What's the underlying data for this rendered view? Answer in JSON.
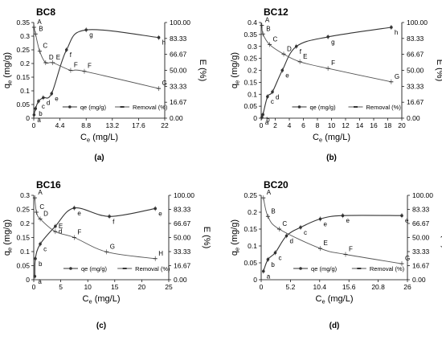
{
  "panels": [
    {
      "tag": "(a)",
      "chart_data": {
        "type": "line",
        "title": "BC8",
        "xlabel": "Ce (mg/L)",
        "ylabel": "qe (mg/g)",
        "y2label": "E (%)",
        "xlim": [
          0,
          22
        ],
        "ylim": [
          0,
          0.35
        ],
        "y2lim": [
          0,
          100
        ],
        "xticks": [
          0,
          4.4,
          8.8,
          13.2,
          17.6,
          22
        ],
        "xtick_labels": [
          "0",
          "4.4",
          "8.8",
          "13.2",
          "17.6",
          "22"
        ],
        "yticks": [
          0,
          0.05,
          0.1,
          0.15,
          0.2,
          0.25,
          0.3,
          0.35
        ],
        "ytick_labels": [
          "0",
          "0.05",
          "0.1",
          "0.15",
          "0.2",
          "0.25",
          "0.3",
          "0.35"
        ],
        "y2ticks": [
          0,
          16.67,
          33.33,
          50,
          66.67,
          83.33,
          100
        ],
        "y2tick_labels": [
          "0.00",
          "16.67",
          "33.33",
          "50.00",
          "66.67",
          "83.33",
          "100.00"
        ],
        "grid": false,
        "legend_position": "center",
        "series": [
          {
            "name": "qe (mg/g)",
            "axis": "left",
            "marker": "dot",
            "x": [
              0.05,
              0.3,
              0.8,
              1.6,
              3.0,
              5.5,
              8.8,
              21.0
            ],
            "y": [
              0.012,
              0.035,
              0.062,
              0.075,
              0.09,
              0.25,
              0.323,
              0.295
            ],
            "labels": [
              "a",
              "b",
              "c",
              "d",
              "e",
              "f",
              "g",
              "h"
            ]
          },
          {
            "name": "Removal (%)",
            "axis": "right",
            "marker": "dash",
            "x": [
              0.05,
              0.3,
              1.0,
              2.0,
              3.2,
              6.2,
              8.5,
              21.0
            ],
            "y": [
              95,
              88,
              70,
              58,
              58,
              50,
              49,
              31
            ],
            "labels": [
              "A",
              "B",
              "C",
              "D",
              "E",
              "F",
              "F",
              "G"
            ]
          }
        ]
      }
    },
    {
      "tag": "(b)",
      "chart_data": {
        "type": "line",
        "title": "BC12",
        "xlabel": "Ce (mg/L)",
        "ylabel": "qe (mg/g)",
        "y2label": "E (%)",
        "xlim": [
          0,
          20
        ],
        "ylim": [
          0,
          0.4
        ],
        "y2lim": [
          0,
          100
        ],
        "xticks": [
          0,
          2,
          4,
          6,
          8,
          10,
          12,
          14,
          16,
          18,
          20
        ],
        "xtick_labels": [
          "0",
          "2",
          "4",
          "6",
          "8",
          "10",
          "12",
          "14",
          "16",
          "18",
          "20"
        ],
        "yticks": [
          0,
          0.05,
          0.1,
          0.15,
          0.2,
          0.25,
          0.3,
          0.35,
          0.4
        ],
        "ytick_labels": [
          "0",
          "0.05",
          "0.1",
          "0.15",
          "0.2",
          "0.25",
          "0.3",
          "0.35",
          "0.4"
        ],
        "y2ticks": [
          0,
          16.67,
          33.33,
          50,
          66.67,
          83.33,
          100
        ],
        "y2tick_labels": [
          "0.00",
          "16.67",
          "33.33",
          "50.00",
          "66.67",
          "83.33",
          "100.00"
        ],
        "grid": false,
        "legend_position": "center",
        "series": [
          {
            "name": "qe (mg/g)",
            "axis": "left",
            "marker": "dot",
            "x": [
              0.1,
              0.25,
              0.9,
              1.6,
              3.0,
              5.0,
              9.5,
              18.5
            ],
            "y": [
              0.003,
              0.015,
              0.09,
              0.11,
              0.2,
              0.3,
              0.34,
              0.38
            ],
            "labels": [
              "a",
              "b",
              "c",
              "d",
              "e",
              "f",
              "g",
              "h"
            ]
          },
          {
            "name": "Removal (%)",
            "axis": "right",
            "marker": "dash",
            "x": [
              0.1,
              0.25,
              1.2,
              3.2,
              5.5,
              9.5,
              18.5
            ],
            "y": [
              97,
              88,
              77,
              67,
              59,
              52,
              38
            ],
            "labels": [
              "A",
              "B",
              "C",
              "D",
              "E",
              "F",
              "G"
            ]
          }
        ]
      }
    },
    {
      "tag": "(c)",
      "chart_data": {
        "type": "line",
        "title": "BC16",
        "xlabel": "Ce (mg/L)",
        "ylabel": "qe (mg/g)",
        "y2label": "E (%)",
        "xlim": [
          0,
          25
        ],
        "ylim": [
          0,
          0.3
        ],
        "y2lim": [
          0,
          100
        ],
        "xticks": [
          0,
          5,
          10,
          15,
          20,
          25
        ],
        "xtick_labels": [
          "0",
          "5",
          "10",
          "15",
          "20",
          "25"
        ],
        "yticks": [
          0,
          0.05,
          0.1,
          0.15,
          0.2,
          0.25,
          0.3
        ],
        "ytick_labels": [
          "0",
          "0.05",
          "0.1",
          "0.15",
          "0.2",
          "0.25",
          "0.3"
        ],
        "y2ticks": [
          0,
          16.67,
          33.33,
          50,
          66.67,
          83.33,
          100
        ],
        "y2tick_labels": [
          "0.00",
          "16.67",
          "33.33",
          "50.00",
          "66.67",
          "83.33",
          "100.00"
        ],
        "grid": false,
        "legend_position": "center",
        "series": [
          {
            "name": "qe (mg/g)",
            "axis": "left",
            "marker": "dot",
            "x": [
              0.2,
              0.3,
              1.2,
              4.0,
              7.5,
              14.0,
              22.5
            ],
            "y": [
              0.012,
              0.075,
              0.127,
              0.19,
              0.255,
              0.225,
              0.253
            ],
            "labels": [
              "a",
              "b",
              "c",
              "d",
              "e",
              "f",
              "e"
            ]
          },
          {
            "name": "Removal (%)",
            "axis": "right",
            "marker": "dash",
            "x": [
              0.2,
              0.5,
              1.2,
              4.0,
              7.5,
              13.5,
              22.5
            ],
            "y": [
              97,
              80,
              72,
              57,
              50,
              33,
              25
            ],
            "labels": [
              "A",
              "C",
              "D",
              "E",
              "F",
              "G",
              "H"
            ]
          }
        ]
      }
    },
    {
      "tag": "(d)",
      "chart_data": {
        "type": "line",
        "title": "BC20",
        "xlabel": "Ce (mg/L)",
        "ylabel": "qe (mg/g)",
        "y2label": "E (%)",
        "xlim": [
          0,
          26
        ],
        "ylim": [
          0,
          0.25
        ],
        "y2lim": [
          0,
          100
        ],
        "xticks": [
          0,
          5.2,
          10.4,
          15.6,
          20.8,
          26
        ],
        "xtick_labels": [
          "0",
          "5.2",
          "10.4",
          "15.6",
          "20.8",
          "26"
        ],
        "yticks": [
          0,
          0.05,
          0.1,
          0.15,
          0.2,
          0.25
        ],
        "ytick_labels": [
          "0",
          "0.05",
          "0.1",
          "0.15",
          "0.2",
          "0.25"
        ],
        "y2ticks": [
          0,
          16.67,
          33.33,
          50,
          66.67,
          83.33,
          100
        ],
        "y2tick_labels": [
          "0.00",
          "16.67",
          "33.33",
          "50.00",
          "66.67",
          "83.33",
          "100.00"
        ],
        "grid": false,
        "legend_position": "center",
        "series": [
          {
            "name": "qe (mg/g)",
            "axis": "left",
            "marker": "dot",
            "x": [
              0.4,
              1.2,
              2.5,
              4.5,
              7.0,
              10.5,
              14.5,
              25.0
            ],
            "y": [
              0.025,
              0.06,
              0.08,
              0.13,
              0.155,
              0.18,
              0.19,
              0.19
            ],
            "labels": [
              "a",
              "b",
              "c",
              "d",
              "c",
              "e",
              "e",
              "e"
            ]
          },
          {
            "name": "Removal (%)",
            "axis": "right",
            "marker": "dash",
            "x": [
              0.4,
              1.2,
              3.2,
              10.5,
              15.0,
              25.0
            ],
            "y": [
              97,
              75,
              60,
              37,
              30,
              19
            ],
            "labels": [
              "A",
              "B",
              "C",
              "E",
              "F",
              "G"
            ]
          }
        ]
      }
    }
  ]
}
